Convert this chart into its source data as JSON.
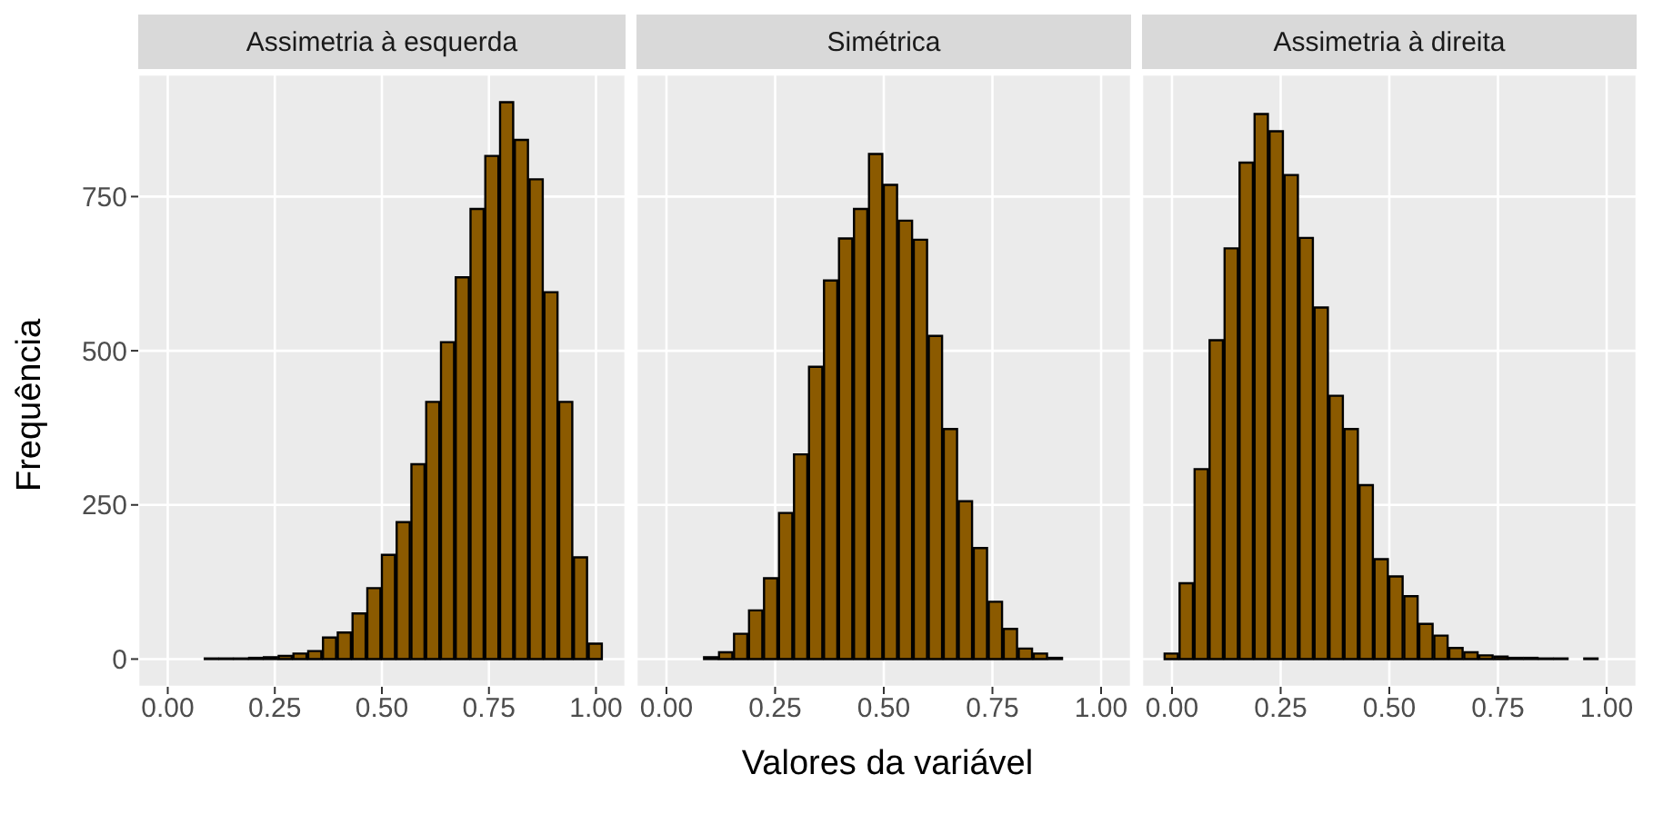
{
  "chart_data": [
    {
      "type": "histogram",
      "title": "Assimetria à esquerda",
      "ylabel": "Frequência",
      "bins": [
        -0.017,
        0.017,
        0.052,
        0.086,
        0.121,
        0.155,
        0.19,
        0.224,
        0.259,
        0.293,
        0.328,
        0.362,
        0.397,
        0.431,
        0.466,
        0.5,
        0.534,
        0.569,
        0.603,
        0.638,
        0.672,
        0.707,
        0.741,
        0.776,
        0.81,
        0.845,
        0.879,
        0.914,
        0.948,
        0.983,
        1.017
      ],
      "values": [
        0,
        0,
        0,
        1,
        1,
        1,
        2,
        3,
        5,
        9,
        13,
        35,
        43,
        74,
        115,
        169,
        222,
        316,
        417,
        514,
        619,
        730,
        816,
        903,
        842,
        778,
        595,
        417,
        165,
        25
      ],
      "color": "#8b5a00",
      "xlim": [
        -0.069,
        1.069
      ],
      "xticks": [
        {
          "value": 0,
          "label": "0.00"
        },
        {
          "value": 0.25,
          "label": "0.25"
        },
        {
          "value": 0.5,
          "label": "0.50"
        },
        {
          "value": 0.75,
          "label": "0.75"
        },
        {
          "value": 1,
          "label": "1.00"
        }
      ],
      "ylim": [
        -45,
        948
      ],
      "yticks": [
        0,
        250,
        500,
        750
      ],
      "grid": true
    },
    {
      "type": "histogram",
      "title": "Simétrica",
      "xlabel": "Valores da variável",
      "bins": [
        -0.017,
        0.017,
        0.052,
        0.086,
        0.121,
        0.155,
        0.19,
        0.224,
        0.259,
        0.293,
        0.328,
        0.362,
        0.397,
        0.431,
        0.466,
        0.5,
        0.534,
        0.569,
        0.603,
        0.638,
        0.672,
        0.707,
        0.741,
        0.776,
        0.81,
        0.845,
        0.879,
        0.914,
        0.948,
        0.983,
        1.017
      ],
      "values": [
        0,
        0,
        0,
        3,
        11,
        41,
        79,
        131,
        237,
        332,
        474,
        614,
        682,
        730,
        819,
        769,
        711,
        680,
        524,
        373,
        256,
        180,
        93,
        49,
        17,
        9,
        2,
        0,
        0,
        0
      ],
      "color": "#8b5a00",
      "xlim": [
        -0.069,
        1.069
      ],
      "xticks": [
        {
          "value": 0,
          "label": "0.00"
        },
        {
          "value": 0.25,
          "label": "0.25"
        },
        {
          "value": 0.5,
          "label": "0.50"
        },
        {
          "value": 0.75,
          "label": "0.75"
        },
        {
          "value": 1,
          "label": "1.00"
        }
      ],
      "ylim": [
        -45,
        948
      ],
      "yticks": [
        0,
        250,
        500,
        750
      ],
      "grid": true,
      "tick_labels": "x"
    },
    {
      "type": "histogram",
      "title": "Assimetria à direita",
      "bins": [
        -0.017,
        0.017,
        0.052,
        0.086,
        0.121,
        0.155,
        0.19,
        0.224,
        0.259,
        0.293,
        0.328,
        0.362,
        0.397,
        0.431,
        0.466,
        0.5,
        0.534,
        0.569,
        0.603,
        0.638,
        0.672,
        0.707,
        0.741,
        0.776,
        0.81,
        0.845,
        0.879,
        0.914,
        0.948,
        0.983,
        1.017
      ],
      "values": [
        9,
        123,
        308,
        517,
        666,
        805,
        884,
        856,
        785,
        683,
        570,
        427,
        373,
        282,
        162,
        134,
        102,
        57,
        38,
        18,
        11,
        6,
        4,
        2,
        2,
        1,
        1,
        0,
        1,
        0
      ],
      "color": "#8b5a00",
      "xlim": [
        -0.069,
        1.069
      ],
      "xticks": [
        {
          "value": 0,
          "label": "0.00"
        },
        {
          "value": 0.25,
          "label": "0.25"
        },
        {
          "value": 0.5,
          "label": "0.50"
        },
        {
          "value": 0.75,
          "label": "0.75"
        },
        {
          "value": 1,
          "label": "1.00"
        }
      ],
      "ylim": [
        -45,
        948
      ],
      "yticks": [
        0,
        250,
        500,
        750
      ],
      "grid": true,
      "tick_labels": "x"
    }
  ]
}
